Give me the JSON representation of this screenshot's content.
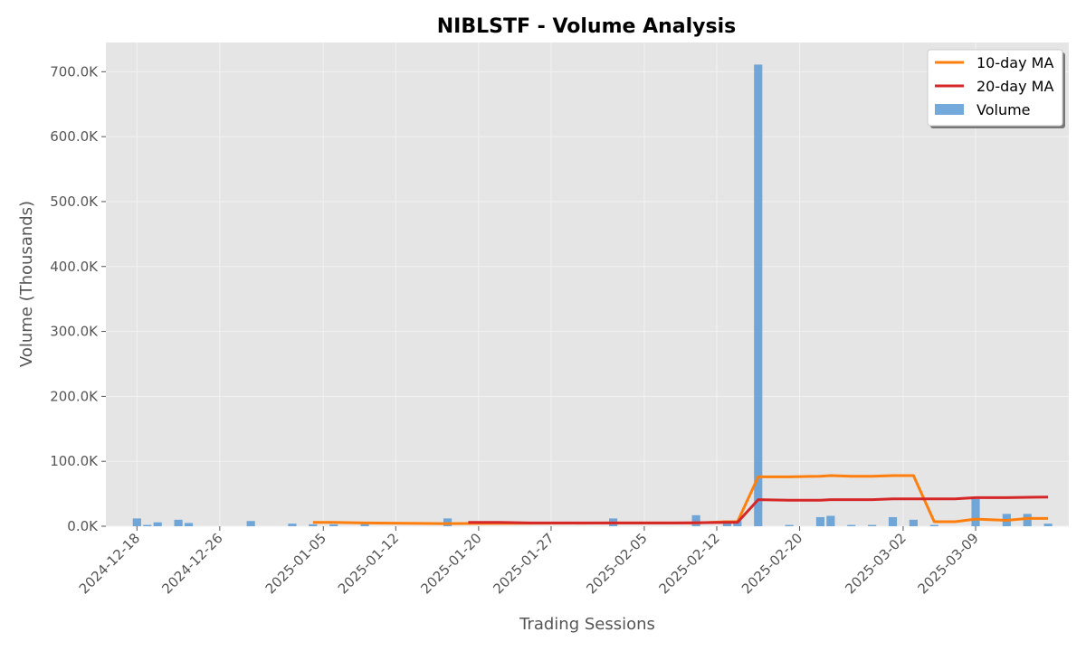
{
  "chart_data": {
    "type": "bar",
    "title": "NIBLSTF - Volume Analysis",
    "xlabel": "Trading Sessions",
    "ylabel": "Volume (Thousands)",
    "ylim": [
      0,
      745
    ],
    "y_ticks": [
      0,
      100,
      200,
      300,
      400,
      500,
      600,
      700
    ],
    "y_tick_labels": [
      "0.0K",
      "100.0K",
      "200.0K",
      "300.0K",
      "400.0K",
      "500.0K",
      "600.0K",
      "700.0K"
    ],
    "x_ticks": [
      "2024-12-18",
      "2024-12-26",
      "2025-01-05",
      "2025-01-12",
      "2025-01-20",
      "2025-01-27",
      "2025-02-05",
      "2025-02-12",
      "2025-02-20",
      "2025-03-02",
      "2025-03-09"
    ],
    "x_range": [
      "2024-12-15",
      "2025-03-18"
    ],
    "grid": true,
    "legend_position": "top-right",
    "legend": [
      "10-day MA",
      "20-day MA",
      "Volume"
    ],
    "colors": {
      "volume": "#5b9bd5",
      "ma10": "#ff7f0e",
      "ma20": "#d62728",
      "background": "#e5e5e5"
    },
    "series": [
      {
        "name": "Volume",
        "type": "bar",
        "points": [
          [
            "2024-12-18",
            12
          ],
          [
            "2024-12-19",
            2
          ],
          [
            "2024-12-20",
            6
          ],
          [
            "2024-12-22",
            10
          ],
          [
            "2024-12-23",
            5
          ],
          [
            "2024-12-29",
            8
          ],
          [
            "2025-01-02",
            4
          ],
          [
            "2025-01-04",
            3
          ],
          [
            "2025-01-06",
            3
          ],
          [
            "2025-01-09",
            7
          ],
          [
            "2025-01-17",
            12
          ],
          [
            "2025-02-02",
            12
          ],
          [
            "2025-02-10",
            17
          ],
          [
            "2025-02-13",
            9
          ],
          [
            "2025-02-14",
            8
          ],
          [
            "2025-02-16",
            711
          ],
          [
            "2025-02-19",
            2
          ],
          [
            "2025-02-22",
            14
          ],
          [
            "2025-02-23",
            16
          ],
          [
            "2025-02-25",
            2
          ],
          [
            "2025-02-27",
            2
          ],
          [
            "2025-03-01",
            14
          ],
          [
            "2025-03-03",
            10
          ],
          [
            "2025-03-05",
            2
          ],
          [
            "2025-03-09",
            42
          ],
          [
            "2025-03-12",
            19
          ],
          [
            "2025-03-14",
            19
          ],
          [
            "2025-03-16",
            4
          ]
        ]
      },
      {
        "name": "10-day MA",
        "type": "line",
        "points": [
          [
            "2025-01-04",
            6
          ],
          [
            "2025-01-06",
            6
          ],
          [
            "2025-01-09",
            5
          ],
          [
            "2025-01-17",
            4
          ],
          [
            "2025-02-02",
            5
          ],
          [
            "2025-02-10",
            5
          ],
          [
            "2025-02-13",
            7
          ],
          [
            "2025-02-14",
            7
          ],
          [
            "2025-02-16",
            76
          ],
          [
            "2025-02-19",
            76
          ],
          [
            "2025-02-22",
            77
          ],
          [
            "2025-02-23",
            78
          ],
          [
            "2025-02-25",
            77
          ],
          [
            "2025-02-27",
            77
          ],
          [
            "2025-03-01",
            78
          ],
          [
            "2025-03-03",
            78
          ],
          [
            "2025-03-05",
            7
          ],
          [
            "2025-03-07",
            7
          ],
          [
            "2025-03-09",
            11
          ],
          [
            "2025-03-12",
            9
          ],
          [
            "2025-03-14",
            12
          ],
          [
            "2025-03-16",
            12
          ]
        ]
      },
      {
        "name": "20-day MA",
        "type": "line",
        "points": [
          [
            "2025-01-19",
            6
          ],
          [
            "2025-01-22",
            6
          ],
          [
            "2025-01-25",
            5
          ],
          [
            "2025-01-29",
            5
          ],
          [
            "2025-02-02",
            5
          ],
          [
            "2025-02-08",
            5
          ],
          [
            "2025-02-13",
            6
          ],
          [
            "2025-02-14",
            6
          ],
          [
            "2025-02-16",
            41
          ],
          [
            "2025-02-19",
            40
          ],
          [
            "2025-02-22",
            40
          ],
          [
            "2025-02-23",
            41
          ],
          [
            "2025-02-27",
            41
          ],
          [
            "2025-03-01",
            42
          ],
          [
            "2025-03-05",
            42
          ],
          [
            "2025-03-07",
            42
          ],
          [
            "2025-03-09",
            44
          ],
          [
            "2025-03-12",
            44
          ],
          [
            "2025-03-16",
            45
          ]
        ]
      }
    ]
  }
}
